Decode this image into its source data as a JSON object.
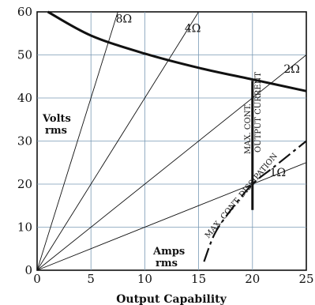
{
  "chart_data": {
    "type": "line",
    "title": "",
    "xlabel": "Output Capability",
    "ylabel": "",
    "xlim": [
      0,
      25
    ],
    "ylim": [
      0,
      60
    ],
    "x_ticks": [
      0,
      5,
      10,
      15,
      20,
      25
    ],
    "y_ticks": [
      0,
      10,
      20,
      30,
      40,
      50,
      60
    ],
    "grid": true,
    "colors": {
      "background": "#ffffff",
      "ink": "#111111",
      "grid": "#7a9ab5"
    },
    "annotations": {
      "volts_line1": "Volts",
      "volts_line2": "rms",
      "amps_line1": "Amps",
      "amps_line2": "rms",
      "max_current_line1": "MAX. CONT.",
      "max_current_line2": "OUTPUT CURRENT",
      "max_dissipation": "MAX. CONT. DISSIPATION"
    },
    "series": [
      {
        "name": "8Ω",
        "kind": "load",
        "x": [
          0,
          7.5
        ],
        "y": [
          0,
          60
        ]
      },
      {
        "name": "4Ω",
        "kind": "load",
        "x": [
          0,
          15
        ],
        "y": [
          0,
          60
        ]
      },
      {
        "name": "2Ω",
        "kind": "load",
        "x": [
          0,
          25
        ],
        "y": [
          0,
          50
        ]
      },
      {
        "name": "1Ω",
        "kind": "load",
        "x": [
          0,
          25
        ],
        "y": [
          0,
          25
        ]
      },
      {
        "name": "",
        "kind": "limit",
        "x": [
          1,
          5,
          10,
          15,
          20,
          25
        ],
        "y": [
          60,
          54.5,
          50.3,
          47,
          44.3,
          41.6
        ]
      },
      {
        "name": "",
        "kind": "limit",
        "x": [
          20,
          20
        ],
        "y": [
          14,
          44
        ]
      },
      {
        "name": "",
        "kind": "limit-dashed",
        "x": [
          15.5,
          16.5,
          18,
          20,
          22,
          25
        ],
        "y": [
          2,
          8.5,
          14,
          20,
          24,
          30
        ]
      }
    ]
  }
}
